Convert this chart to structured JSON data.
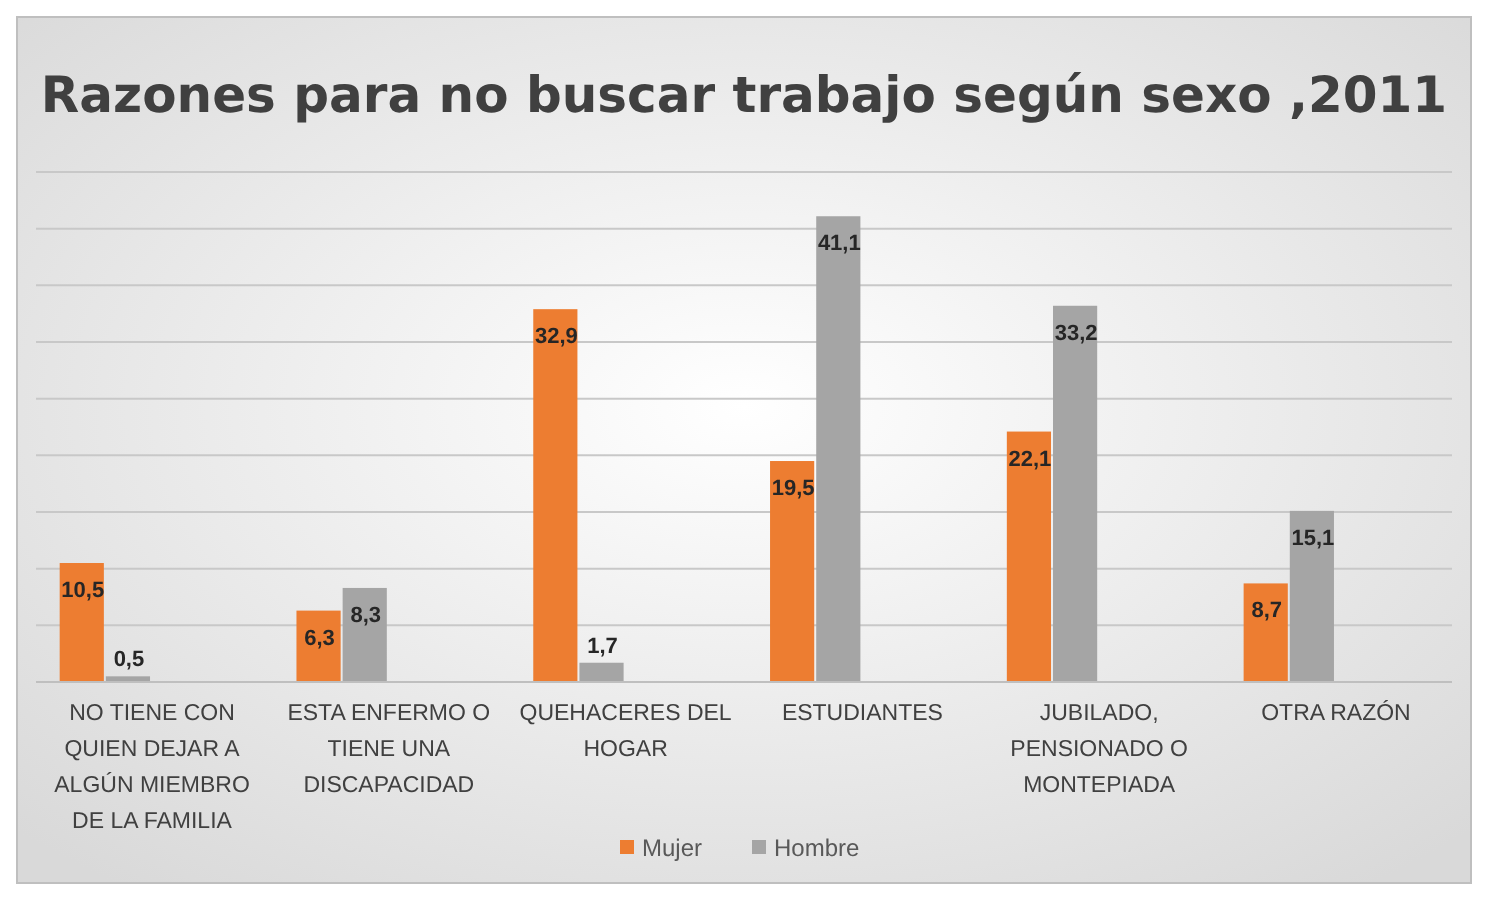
{
  "chart_data": {
    "type": "bar",
    "title": "Razones para no buscar trabajo según sexo ,2011",
    "categories": [
      "NO TIENE CON QUIEN DEJAR A ALGÚN MIEMBRO DE LA FAMILIA",
      "ESTA ENFERMO O TIENE UNA DISCAPACIDAD",
      "QUEHACERES DEL HOGAR",
      "ESTUDIANTES",
      "JUBILADO, PENSIONADO O MONTEPIADA",
      "OTRA RAZÓN"
    ],
    "series": [
      {
        "name": "Mujer",
        "color": "#ed7d31",
        "values": [
          10.5,
          6.3,
          32.9,
          19.5,
          22.1,
          8.7
        ],
        "value_labels": [
          "10,5",
          "6,3",
          "32,9",
          "19,5",
          "22,1",
          "8,7"
        ]
      },
      {
        "name": "Hombre",
        "color": "#a5a5a5",
        "values": [
          0.5,
          8.3,
          1.7,
          41.1,
          33.2,
          15.1
        ],
        "value_labels": [
          "0,5",
          "8,3",
          "1,7",
          "41,1",
          "33,2",
          "15,1"
        ]
      }
    ],
    "tick_labels": "x",
    "grid": "y",
    "legend": "bottom"
  }
}
